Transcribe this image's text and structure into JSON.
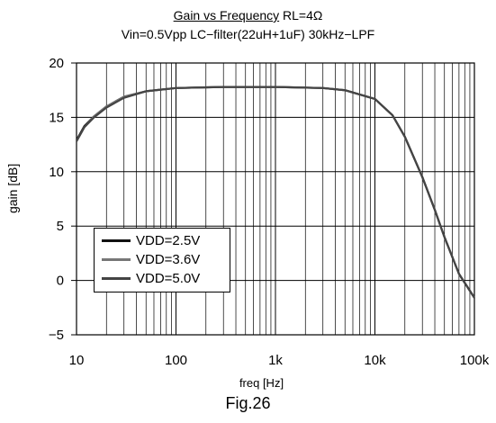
{
  "title": {
    "part1": "Gain vs Frequency",
    "part2": " RL=4Ω",
    "line2": "Vin=0.5Vpp LC−filter(22uH+1uF) 30kHz−LPF"
  },
  "caption": "Fig.26",
  "chart_data": {
    "type": "line",
    "xlabel": "freq [Hz]",
    "ylabel": "gain [dB]",
    "xscale": "log",
    "xlim": [
      10,
      100000
    ],
    "ylim": [
      -5,
      20
    ],
    "xticks": [
      10,
      100,
      1000,
      10000,
      100000
    ],
    "xtick_labels": [
      "10",
      "100",
      "1k",
      "10k",
      "100k"
    ],
    "yticks": [
      -5,
      0,
      5,
      10,
      15,
      20
    ],
    "ytick_labels": [
      "−5",
      "0",
      "5",
      "10",
      "15",
      "20"
    ],
    "grid": true,
    "legend_position": "lower-left",
    "series": [
      {
        "name": "VDD=2.5V",
        "color": "#111111",
        "x": [
          10,
          12,
          15,
          20,
          30,
          50,
          100,
          300,
          1000,
          3000,
          5000,
          10000,
          15000,
          20000,
          30000,
          40000,
          50000,
          70000,
          100000
        ],
        "y": [
          12.9,
          14.2,
          15.1,
          16.0,
          16.9,
          17.4,
          17.7,
          17.8,
          17.8,
          17.7,
          17.5,
          16.7,
          15.2,
          13.2,
          9.5,
          6.5,
          4.0,
          0.6,
          -1.6
        ]
      },
      {
        "name": "VDD=3.6V",
        "color": "#777777",
        "x": [
          10,
          12,
          15,
          20,
          30,
          50,
          100,
          300,
          1000,
          3000,
          5000,
          10000,
          15000,
          20000,
          30000,
          40000,
          50000,
          70000,
          100000
        ],
        "y": [
          12.8,
          14.1,
          15.1,
          16.0,
          16.9,
          17.4,
          17.7,
          17.8,
          17.8,
          17.7,
          17.5,
          16.7,
          15.2,
          13.2,
          9.5,
          6.5,
          4.0,
          0.6,
          -1.6
        ]
      },
      {
        "name": "VDD=5.0V",
        "color": "#444444",
        "x": [
          10,
          12,
          15,
          20,
          30,
          50,
          100,
          300,
          1000,
          3000,
          5000,
          10000,
          15000,
          20000,
          30000,
          40000,
          50000,
          70000,
          100000
        ],
        "y": [
          12.8,
          14.1,
          15.0,
          15.9,
          16.8,
          17.4,
          17.7,
          17.8,
          17.8,
          17.7,
          17.5,
          16.7,
          15.2,
          13.2,
          9.5,
          6.5,
          4.0,
          0.6,
          -1.6
        ]
      }
    ]
  }
}
